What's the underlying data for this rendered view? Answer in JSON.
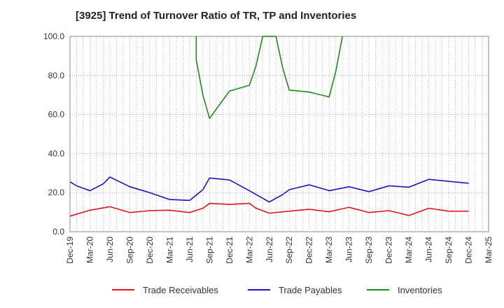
{
  "chart_data": {
    "type": "line",
    "title": "[3925]  Trend of Turnover Ratio of TR, TP and Inventories",
    "xlabel": "",
    "ylabel": "",
    "ylim": [
      0,
      100
    ],
    "y_ticks": [
      "0.0",
      "20.0",
      "40.0",
      "60.0",
      "80.0",
      "100.0"
    ],
    "x_tick_labels": [
      "Dec-19",
      "Mar-20",
      "Jun-20",
      "Sep-20",
      "Dec-20",
      "Mar-21",
      "Jun-21",
      "Sep-21",
      "Dec-21",
      "Mar-22",
      "Jun-22",
      "Sep-22",
      "Dec-22",
      "Mar-23",
      "Jun-23",
      "Sep-23",
      "Dec-23",
      "Mar-24",
      "Jun-24",
      "Sep-24",
      "Dec-24",
      "Mar-25"
    ],
    "x_months": [
      "Dec-19",
      "Jan-20",
      "Feb-20",
      "Mar-20",
      "Apr-20",
      "May-20",
      "Jun-20",
      "Jul-20",
      "Aug-20",
      "Sep-20",
      "Oct-20",
      "Nov-20",
      "Dec-20",
      "Jan-21",
      "Feb-21",
      "Mar-21",
      "Apr-21",
      "May-21",
      "Jun-21",
      "Jul-21",
      "Aug-21",
      "Sep-21",
      "Oct-21",
      "Nov-21",
      "Dec-21",
      "Jan-22",
      "Feb-22",
      "Mar-22",
      "Apr-22",
      "May-22",
      "Jun-22",
      "Jul-22",
      "Aug-22",
      "Sep-22",
      "Oct-22",
      "Nov-22",
      "Dec-22",
      "Jan-23",
      "Feb-23",
      "Mar-23",
      "Apr-23",
      "May-23",
      "Jun-23",
      "Jul-23",
      "Aug-23",
      "Sep-23",
      "Oct-23",
      "Nov-23",
      "Dec-23",
      "Jan-24",
      "Feb-24",
      "Mar-24",
      "Apr-24",
      "May-24",
      "Jun-24",
      "Jul-24",
      "Aug-24",
      "Sep-24",
      "Oct-24",
      "Nov-24",
      "Dec-24",
      "Jan-25",
      "Feb-25",
      "Mar-25"
    ],
    "grid": true,
    "legend_position": "bottom",
    "series": [
      {
        "name": "Trade Receivables",
        "color": "#e8131b",
        "points": [
          {
            "x": "Dec-19",
            "y": 8.0
          },
          {
            "x": "Mar-20",
            "y": 11.0
          },
          {
            "x": "Jun-20",
            "y": 12.8
          },
          {
            "x": "Sep-20",
            "y": 9.8
          },
          {
            "x": "Dec-20",
            "y": 10.8
          },
          {
            "x": "Mar-21",
            "y": 11.0
          },
          {
            "x": "Jun-21",
            "y": 9.8
          },
          {
            "x": "Aug-21",
            "y": 12.0
          },
          {
            "x": "Sep-21",
            "y": 14.5
          },
          {
            "x": "Dec-21",
            "y": 14.0
          },
          {
            "x": "Mar-22",
            "y": 14.5
          },
          {
            "x": "Apr-22",
            "y": 12.0
          },
          {
            "x": "Jun-22",
            "y": 9.5
          },
          {
            "x": "Sep-22",
            "y": 10.5
          },
          {
            "x": "Dec-22",
            "y": 11.5
          },
          {
            "x": "Mar-23",
            "y": 10.2
          },
          {
            "x": "Jun-23",
            "y": 12.5
          },
          {
            "x": "Sep-23",
            "y": 9.8
          },
          {
            "x": "Dec-23",
            "y": 10.8
          },
          {
            "x": "Mar-24",
            "y": 8.3
          },
          {
            "x": "Jun-24",
            "y": 12.0
          },
          {
            "x": "Sep-24",
            "y": 10.5
          },
          {
            "x": "Dec-24",
            "y": 10.5
          }
        ]
      },
      {
        "name": "Trade Payables",
        "color": "#1616c4",
        "points": [
          {
            "x": "Dec-19",
            "y": 25.5
          },
          {
            "x": "Jan-20",
            "y": 23.5
          },
          {
            "x": "Mar-20",
            "y": 21.0
          },
          {
            "x": "May-20",
            "y": 24.5
          },
          {
            "x": "Jun-20",
            "y": 28.0
          },
          {
            "x": "Sep-20",
            "y": 23.0
          },
          {
            "x": "Dec-20",
            "y": 20.0
          },
          {
            "x": "Mar-21",
            "y": 16.5
          },
          {
            "x": "Jun-21",
            "y": 16.0
          },
          {
            "x": "Aug-21",
            "y": 21.5
          },
          {
            "x": "Sep-21",
            "y": 27.5
          },
          {
            "x": "Dec-21",
            "y": 26.5
          },
          {
            "x": "Mar-22",
            "y": 21.0
          },
          {
            "x": "Jun-22",
            "y": 15.2
          },
          {
            "x": "Aug-22",
            "y": 19.0
          },
          {
            "x": "Sep-22",
            "y": 21.5
          },
          {
            "x": "Dec-22",
            "y": 24.0
          },
          {
            "x": "Mar-23",
            "y": 21.0
          },
          {
            "x": "Jun-23",
            "y": 23.0
          },
          {
            "x": "Sep-23",
            "y": 20.5
          },
          {
            "x": "Dec-23",
            "y": 23.5
          },
          {
            "x": "Mar-24",
            "y": 22.8
          },
          {
            "x": "Jun-24",
            "y": 26.8
          },
          {
            "x": "Sep-24",
            "y": 25.8
          },
          {
            "x": "Dec-24",
            "y": 24.8
          }
        ]
      },
      {
        "name": "Inventories",
        "color": "#1b8c1b",
        "points": [
          {
            "x": "Jul-21",
            "y": 100.0
          },
          {
            "x": "Jul-21",
            "y": 88.0
          },
          {
            "x": "Aug-21",
            "y": 70.0
          },
          {
            "x": "Sep-21",
            "y": 58.0
          },
          {
            "x": "Dec-21",
            "y": 72.0
          },
          {
            "x": "Mar-22",
            "y": 75.0
          },
          {
            "x": "Apr-22",
            "y": 85.0
          },
          {
            "x": "May-22",
            "y": 100.0
          },
          {
            "x": "Jul-22",
            "y": 100.0
          },
          {
            "x": "Aug-22",
            "y": 84.0
          },
          {
            "x": "Sep-22",
            "y": 72.5
          },
          {
            "x": "Dec-22",
            "y": 71.5
          },
          {
            "x": "Mar-23",
            "y": 69.0
          },
          {
            "x": "Apr-23",
            "y": 82.0
          },
          {
            "x": "May-23",
            "y": 100.0
          }
        ]
      }
    ]
  }
}
